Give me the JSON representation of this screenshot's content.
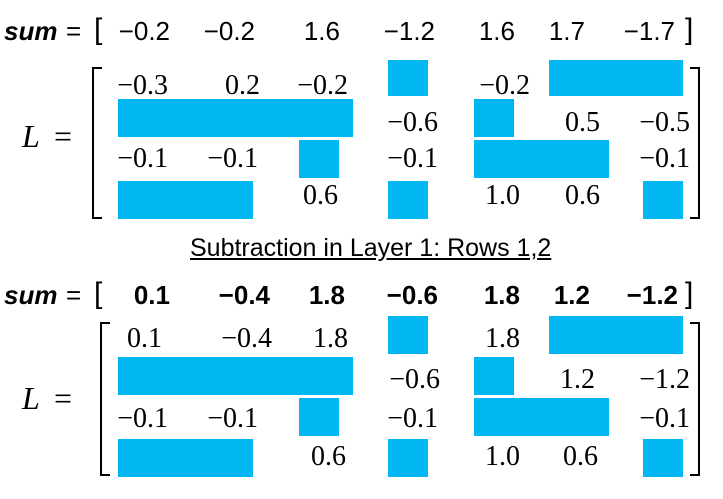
{
  "sum_label": "sum",
  "equals": "=",
  "open_bracket": "[",
  "close_bracket": "]",
  "matrix_label": "L",
  "caption": "Subtraction in Layer 1: Rows 1,2",
  "block_color": "#00b7f1",
  "top": {
    "sums": [
      "−0.2",
      "−0.2",
      "1.6",
      "−1.2",
      "1.6",
      "1.7",
      "−1.7"
    ],
    "rows": [
      [
        "−0.3",
        "0.2",
        "−0.2",
        "",
        "−0.2",
        "",
        ""
      ],
      [
        "",
        "",
        "",
        "−0.6",
        "",
        "0.5",
        "−0.5"
      ],
      [
        "−0.1",
        "−0.1",
        "",
        "−0.1",
        "",
        "",
        "−0.1"
      ],
      [
        "",
        "",
        "0.6",
        "",
        "1.0",
        "0.6",
        ""
      ]
    ]
  },
  "bottom": {
    "sums": [
      "0.1",
      "−0.4",
      "1.8",
      "−0.6",
      "1.8",
      "1.2",
      "−1.2"
    ],
    "rows": [
      [
        "0.1",
        "−0.4",
        "1.8",
        "",
        "1.8",
        "",
        ""
      ],
      [
        "",
        "",
        "",
        "−0.6",
        "",
        "1.2",
        "−1.2"
      ],
      [
        "−0.1",
        "−0.1",
        "",
        "−0.1",
        "",
        "",
        "−0.1"
      ],
      [
        "",
        "",
        "0.6",
        "",
        "1.0",
        "0.6",
        ""
      ]
    ]
  }
}
